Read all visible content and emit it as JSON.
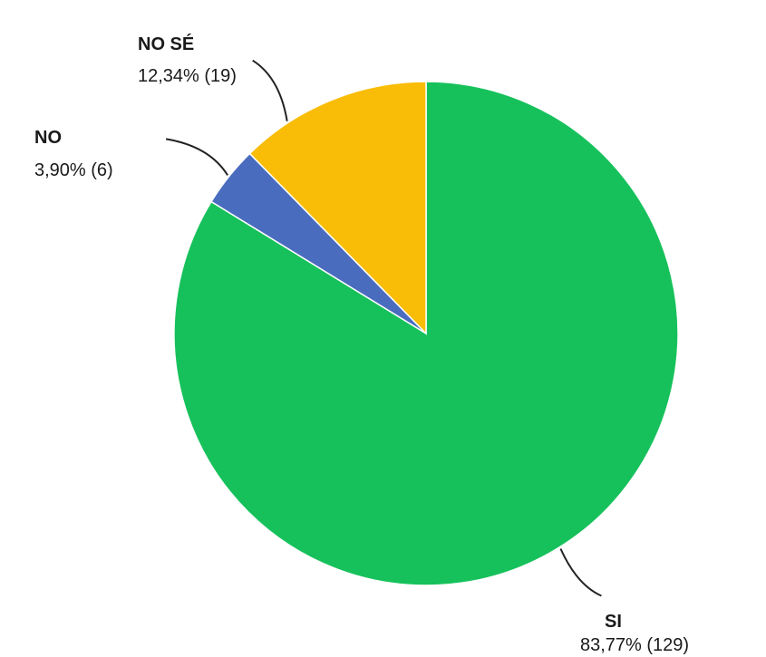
{
  "chart_data": {
    "type": "pie",
    "start_angle_deg": 0,
    "direction": "clockwise",
    "slices": [
      {
        "label": "SI",
        "value": 129,
        "percent_text": "83,77% (129)",
        "color": "#16c15b"
      },
      {
        "label": "NO",
        "value": 6,
        "percent_text": "3,90% (6)",
        "color": "#4a6cbf"
      },
      {
        "label": "NO SÉ",
        "value": 19,
        "percent_text": "12,34% (19)",
        "color": "#f9bd07"
      }
    ],
    "legend": "none",
    "label_style": "callout-lines"
  }
}
